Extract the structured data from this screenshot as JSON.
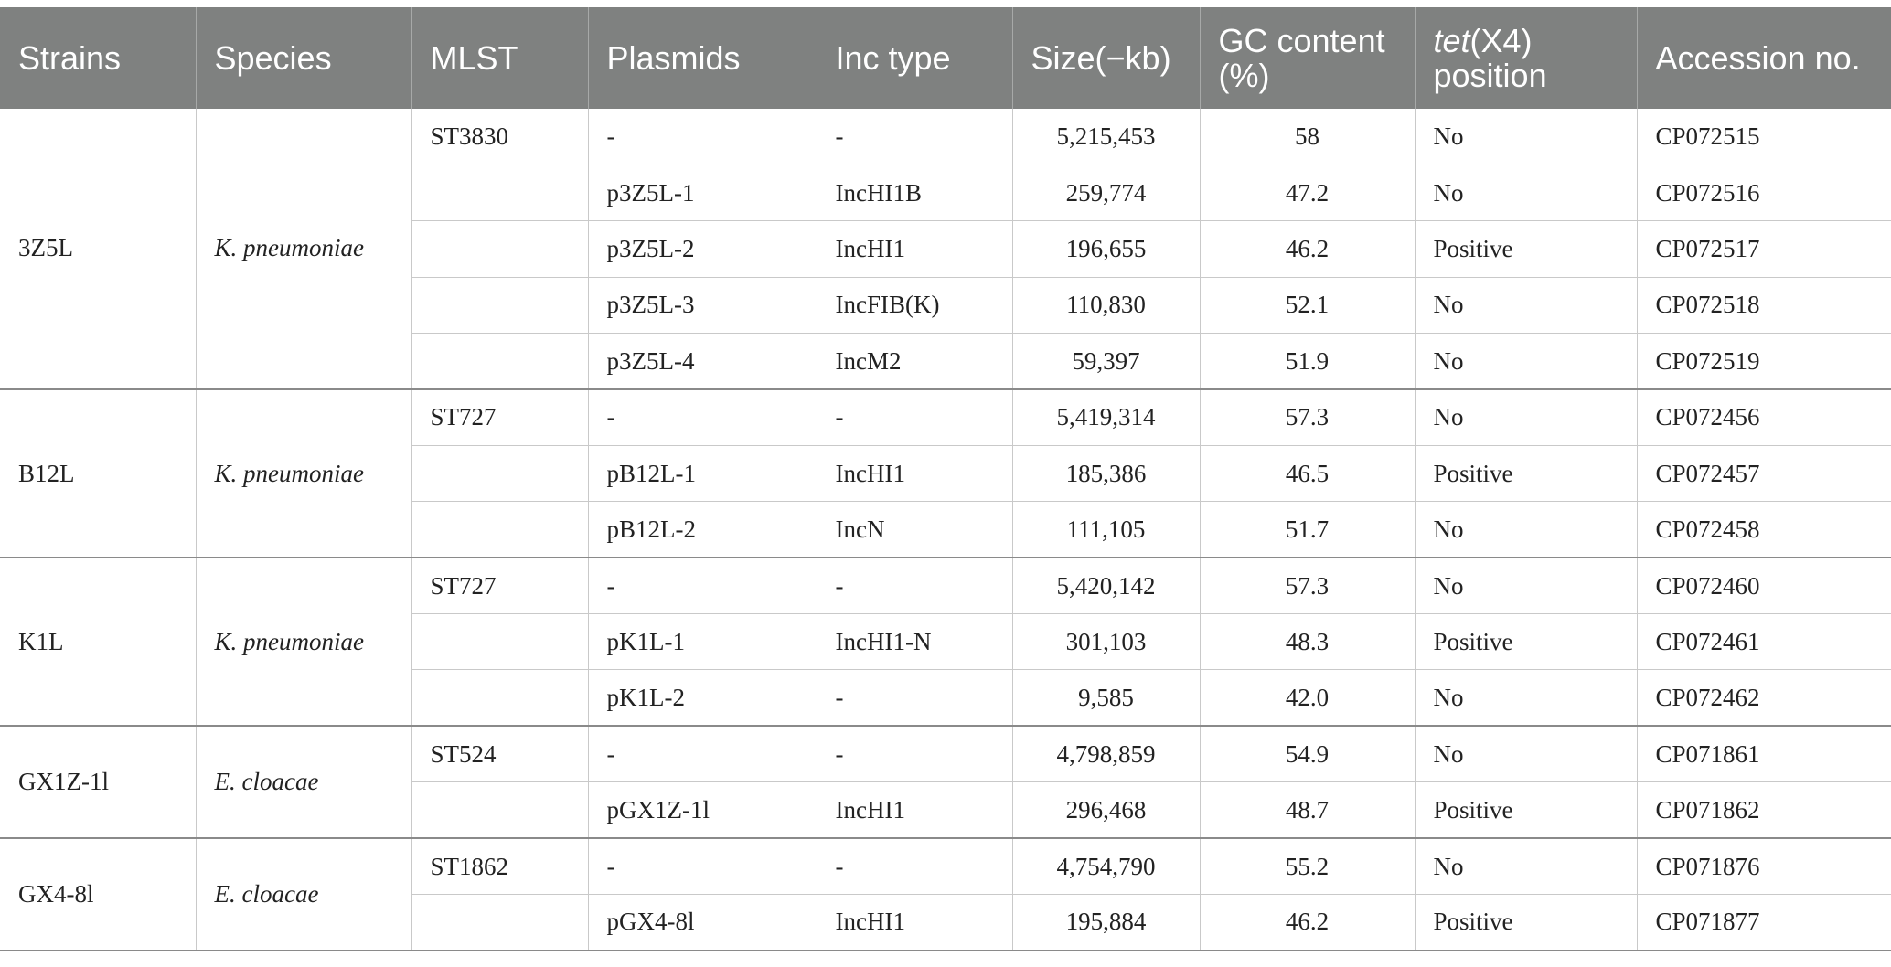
{
  "table": {
    "headers": {
      "strains": "Strains",
      "species": "Species",
      "mlst": "MLST",
      "plasmids": "Plasmids",
      "inc_type": "Inc type",
      "size": "Size(−kb)",
      "gc": "GC content (%)",
      "tet_italic": "tet",
      "tet_rest": "(X4) position",
      "accession": "Accession no."
    },
    "groups": [
      {
        "strain": "3Z5L",
        "species": "K. pneumoniae",
        "rows": [
          {
            "mlst": "ST3830",
            "plasmid": "-",
            "inc": "-",
            "size": "5,215,453",
            "gc": "58",
            "tet": "No",
            "acc": "CP072515"
          },
          {
            "mlst": "",
            "plasmid": "p3Z5L-1",
            "inc": "IncHI1B",
            "size": "259,774",
            "gc": "47.2",
            "tet": "No",
            "acc": "CP072516"
          },
          {
            "mlst": "",
            "plasmid": "p3Z5L-2",
            "inc": "IncHI1",
            "size": "196,655",
            "gc": "46.2",
            "tet": "Positive",
            "acc": "CP072517"
          },
          {
            "mlst": "",
            "plasmid": "p3Z5L-3",
            "inc": "IncFIB(K)",
            "size": "110,830",
            "gc": "52.1",
            "tet": "No",
            "acc": "CP072518"
          },
          {
            "mlst": "",
            "plasmid": "p3Z5L-4",
            "inc": "IncM2",
            "size": "59,397",
            "gc": "51.9",
            "tet": "No",
            "acc": "CP072519"
          }
        ]
      },
      {
        "strain": "B12L",
        "species": "K. pneumoniae",
        "rows": [
          {
            "mlst": "ST727",
            "plasmid": "-",
            "inc": "-",
            "size": "5,419,314",
            "gc": "57.3",
            "tet": "No",
            "acc": "CP072456"
          },
          {
            "mlst": "",
            "plasmid": "pB12L-1",
            "inc": "IncHI1",
            "size": "185,386",
            "gc": "46.5",
            "tet": "Positive",
            "acc": "CP072457"
          },
          {
            "mlst": "",
            "plasmid": "pB12L-2",
            "inc": "IncN",
            "size": "111,105",
            "gc": "51.7",
            "tet": "No",
            "acc": "CP072458"
          }
        ]
      },
      {
        "strain": "K1L",
        "species": "K. pneumoniae",
        "rows": [
          {
            "mlst": "ST727",
            "plasmid": "-",
            "inc": "-",
            "size": "5,420,142",
            "gc": "57.3",
            "tet": "No",
            "acc": "CP072460"
          },
          {
            "mlst": "",
            "plasmid": "pK1L-1",
            "inc": "IncHI1-N",
            "size": "301,103",
            "gc": "48.3",
            "tet": "Positive",
            "acc": "CP072461"
          },
          {
            "mlst": "",
            "plasmid": "pK1L-2",
            "inc": "-",
            "size": "9,585",
            "gc": "42.0",
            "tet": "No",
            "acc": "CP072462"
          }
        ]
      },
      {
        "strain": "GX1Z-1l",
        "species": "E. cloacae",
        "rows": [
          {
            "mlst": "ST524",
            "plasmid": "-",
            "inc": "-",
            "size": "4,798,859",
            "gc": "54.9",
            "tet": "No",
            "acc": "CP071861"
          },
          {
            "mlst": "",
            "plasmid": "pGX1Z-1l",
            "inc": "IncHI1",
            "size": "296,468",
            "gc": "48.7",
            "tet": "Positive",
            "acc": "CP071862"
          }
        ]
      },
      {
        "strain": "GX4-8l",
        "species": "E. cloacae",
        "rows": [
          {
            "mlst": "ST1862",
            "plasmid": "-",
            "inc": "-",
            "size": "4,754,790",
            "gc": "55.2",
            "tet": "No",
            "acc": "CP071876"
          },
          {
            "mlst": "",
            "plasmid": "pGX4-8l",
            "inc": "IncHI1",
            "size": "195,884",
            "gc": "46.2",
            "tet": "Positive",
            "acc": "CP071877"
          }
        ]
      }
    ]
  }
}
